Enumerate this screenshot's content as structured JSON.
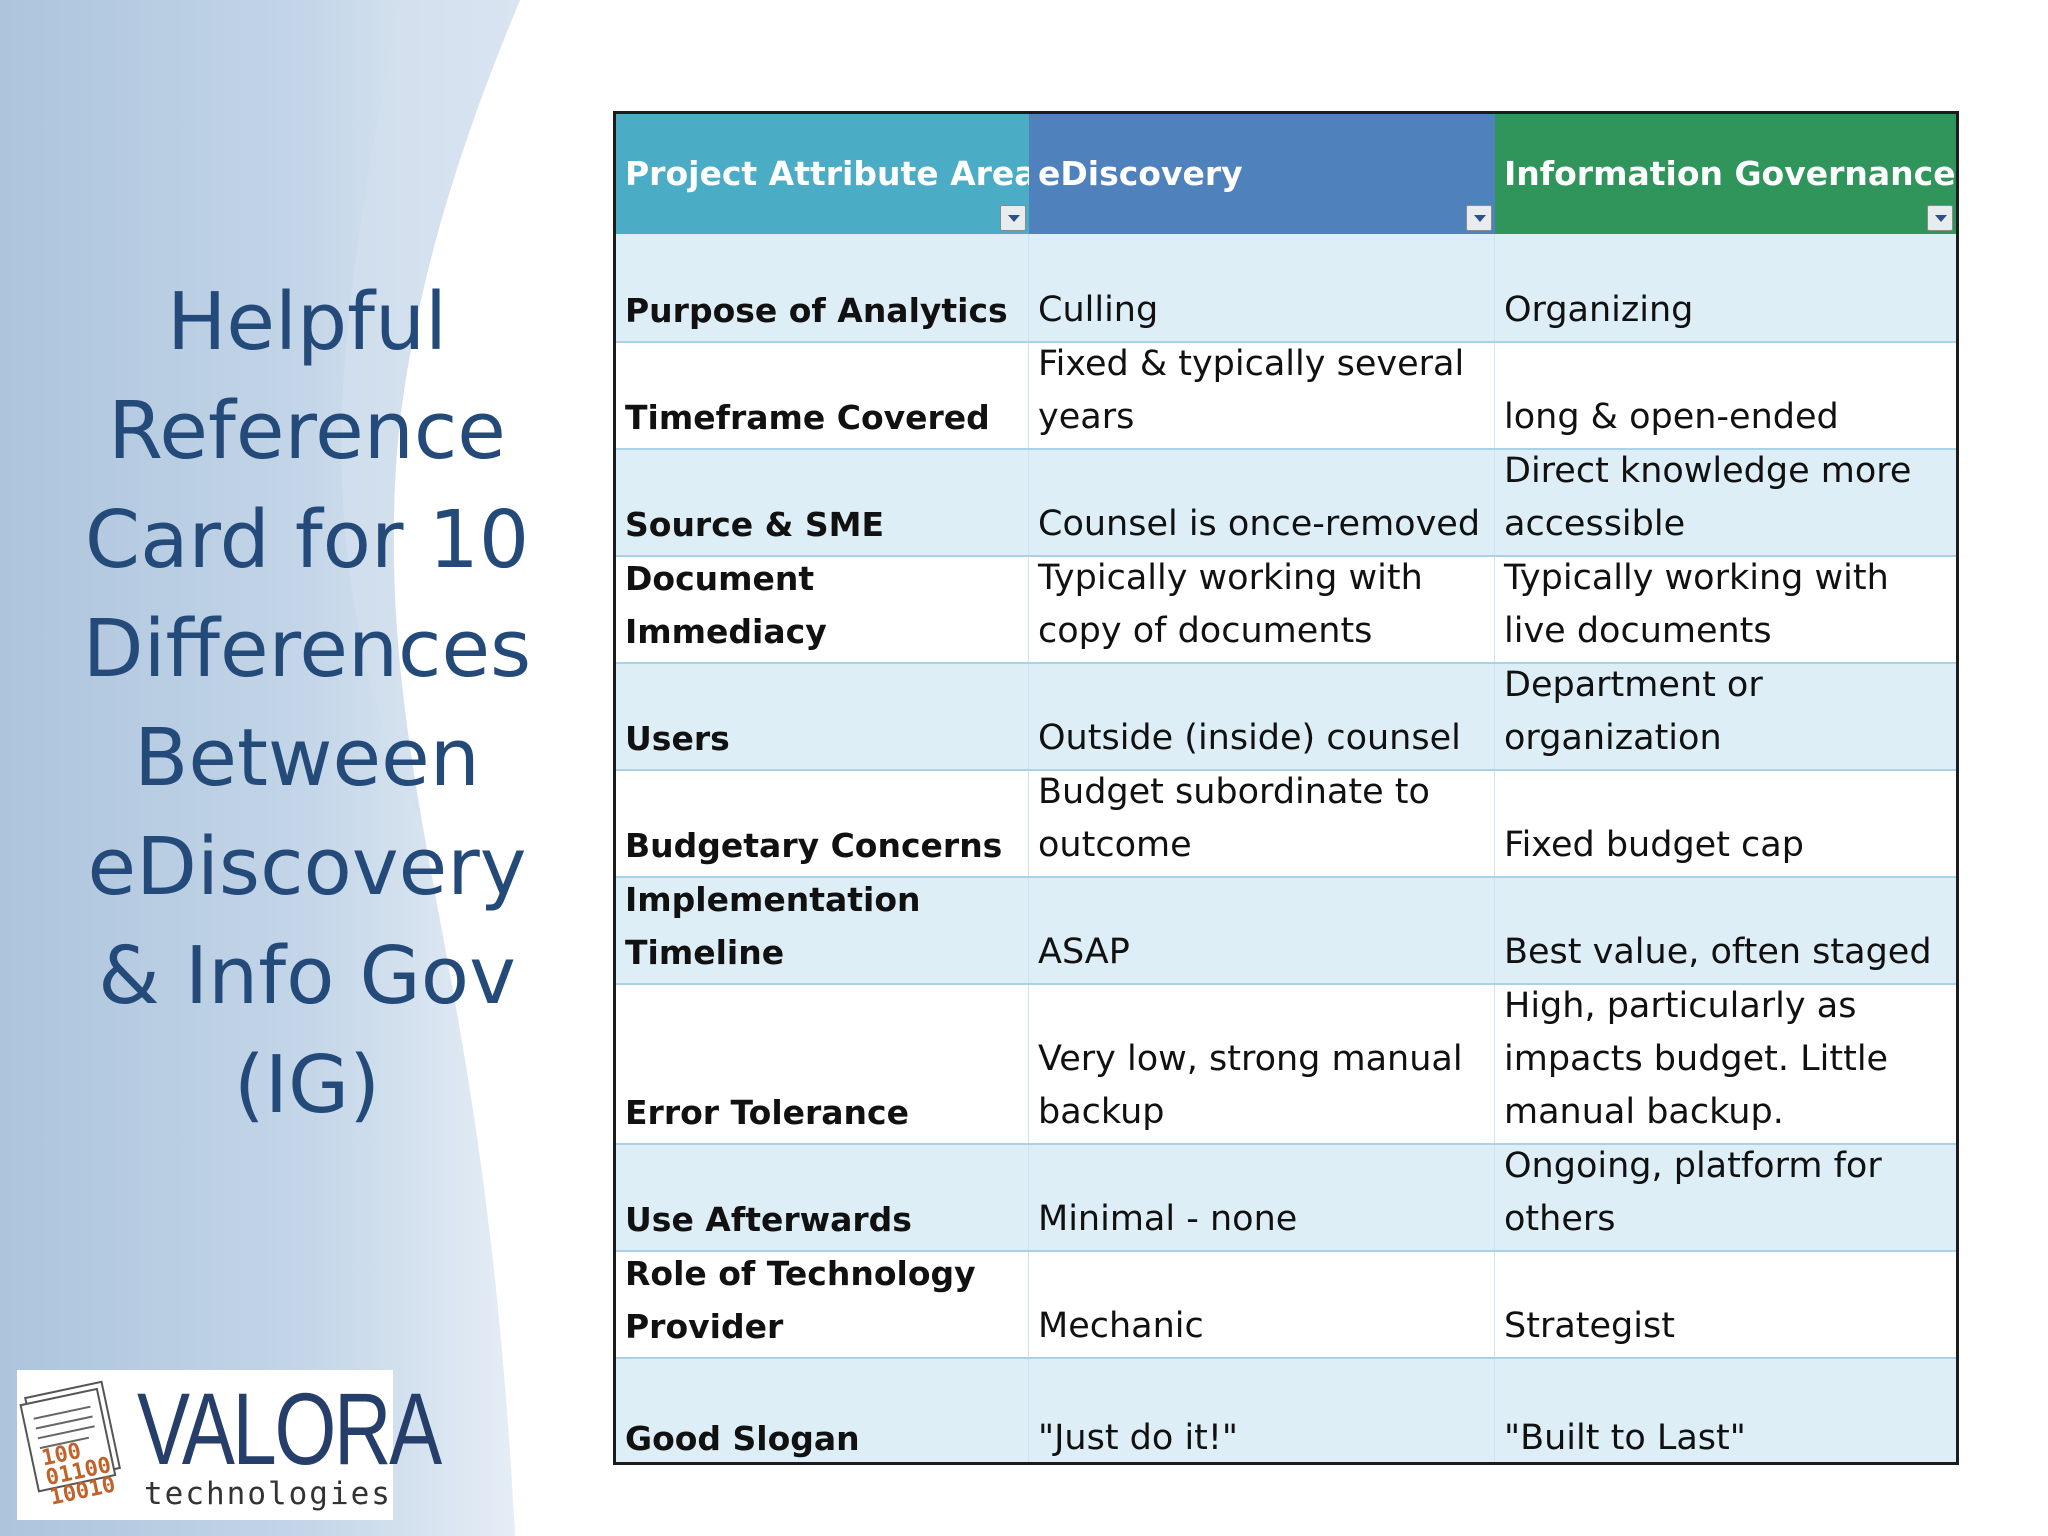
{
  "slide": {
    "title_lines": [
      "Helpful",
      "Reference",
      "Card for 10",
      "Differences",
      "Between",
      "eDiscovery",
      "& Info Gov",
      "(IG)"
    ],
    "colors": {
      "title": "#244a7a",
      "panel": "#b7cde3",
      "header_col1": "#4bacc6",
      "header_col2": "#4f81bd",
      "header_col3": "#30955b",
      "row_band": "#ddeef7"
    }
  },
  "logo": {
    "word": "VALORA",
    "sub": "technologies",
    "bits": "100\n01100\n10010"
  },
  "table": {
    "headers": [
      "Project Attribute Area",
      "eDiscovery",
      "Information Governance"
    ],
    "rows": [
      [
        "Purpose of Analytics",
        "Culling",
        "Organizing"
      ],
      [
        "Timeframe Covered",
        "Fixed & typically several years",
        "long & open-ended"
      ],
      [
        "Source & SME",
        "Counsel is once-removed",
        "Direct knowledge more accessible"
      ],
      [
        "Document Immediacy",
        "Typically working with copy of documents",
        "Typically working with live documents"
      ],
      [
        "Users",
        "Outside (inside) counsel",
        "Department or organization"
      ],
      [
        "Budgetary Concerns",
        "Budget subordinate to outcome",
        "Fixed budget cap"
      ],
      [
        "Implementation Timeline",
        "ASAP",
        "Best value, often staged"
      ],
      [
        "Error Tolerance",
        "Very low, strong manual backup",
        "High, particularly as impacts budget.  Little manual backup."
      ],
      [
        "Use Afterwards",
        "Minimal - none",
        "Ongoing, platform for others"
      ],
      [
        "Role of Technology Provider",
        "Mechanic",
        "Strategist"
      ],
      [
        "Good Slogan",
        "\"Just do it!\"",
        "\"Built to Last\""
      ]
    ]
  }
}
